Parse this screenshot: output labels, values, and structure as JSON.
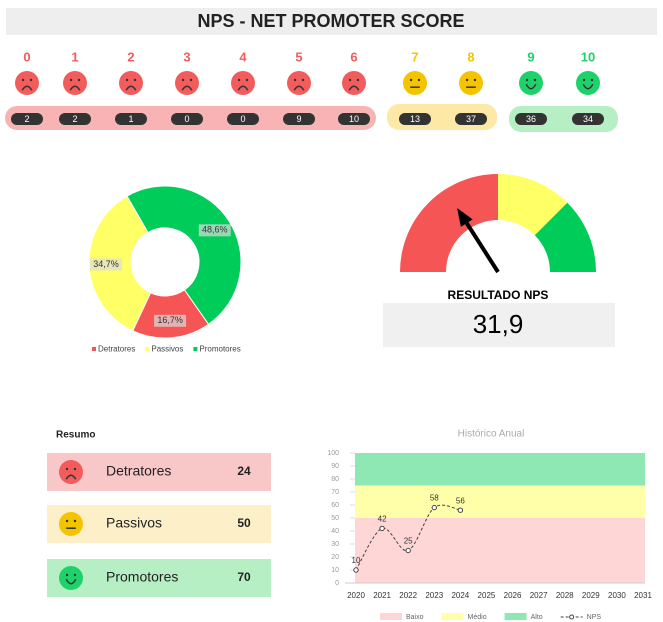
{
  "title": "NPS - NET PROMOTER SCORE",
  "scores": [
    {
      "score": 0,
      "count": 2,
      "color": "#f25c5c"
    },
    {
      "score": 1,
      "count": 2,
      "color": "#f25c5c"
    },
    {
      "score": 2,
      "count": 1,
      "color": "#f25c5c"
    },
    {
      "score": 3,
      "count": 0,
      "color": "#f25c5c"
    },
    {
      "score": 4,
      "count": 0,
      "color": "#f25c5c"
    },
    {
      "score": 5,
      "count": 9,
      "color": "#f25c5c"
    },
    {
      "score": 6,
      "count": 10,
      "color": "#f25c5c"
    },
    {
      "score": 7,
      "count": 13,
      "color": "#f5c400"
    },
    {
      "score": 8,
      "count": 37,
      "color": "#f5c400"
    },
    {
      "score": 9,
      "count": 36,
      "color": "#1fd16a"
    },
    {
      "score": 10,
      "count": 34,
      "color": "#1fd16a"
    }
  ],
  "summary": {
    "title": "Resumo",
    "rows": [
      {
        "label": "Detratores",
        "value": 24,
        "color": "#f8c8c8",
        "face": "#f25c5c"
      },
      {
        "label": "Passivos",
        "value": 50,
        "color": "#fdf0c8",
        "face": "#f5c400"
      },
      {
        "label": "Promotores",
        "value": 70,
        "color": "#b6efc4",
        "face": "#1fd16a"
      }
    ]
  },
  "chart_data": [
    {
      "type": "pie",
      "donut": true,
      "categories": [
        "Detratores",
        "Passivos",
        "Promotores"
      ],
      "values": [
        16.7,
        34.7,
        48.6
      ],
      "value_labels": [
        "16,7%",
        "34,7%",
        "48,6%"
      ],
      "colors": [
        "#f55555",
        "#ffff66",
        "#00cc5a"
      ],
      "legend": "bottom"
    },
    {
      "type": "gauge",
      "label": "RESULTADO NPS",
      "value": 31.9,
      "value_label": "31,9",
      "range": [
        0,
        100
      ],
      "bands": [
        {
          "from": 0,
          "to": 50,
          "color": "#f55555"
        },
        {
          "from": 50,
          "to": 75,
          "color": "#ffff66"
        },
        {
          "from": 75,
          "to": 100,
          "color": "#00cc5a"
        }
      ]
    },
    {
      "type": "line",
      "title": "Histórico Anual",
      "x": [
        2020,
        2021,
        2022,
        2023,
        2024,
        2025,
        2026,
        2027,
        2028,
        2029,
        2030,
        2031
      ],
      "series": [
        {
          "name": "NPS",
          "color": "#444444",
          "values": [
            10,
            42,
            25,
            58,
            56,
            null,
            null,
            null,
            null,
            null,
            null,
            null
          ]
        }
      ],
      "bands": [
        {
          "name": "Baixo",
          "from": 0,
          "to": 50,
          "color": "#ffd6d6"
        },
        {
          "name": "Médio",
          "from": 50,
          "to": 75,
          "color": "#ffffaa"
        },
        {
          "name": "Alto",
          "from": 75,
          "to": 100,
          "color": "#8de8b4"
        }
      ],
      "ylim": [
        0,
        100
      ],
      "yticks": [
        0,
        10,
        20,
        30,
        40,
        50,
        60,
        70,
        80,
        90,
        100
      ],
      "legend": "bottom"
    }
  ]
}
